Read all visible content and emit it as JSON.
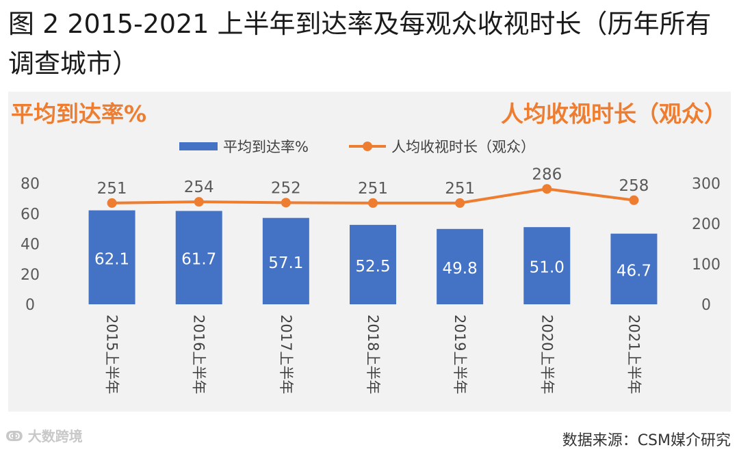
{
  "title": "图 2 2015-2021 上半年到达率及每观众收视时长（历年所有调查城市）",
  "footer": {
    "watermark": "大数跨境",
    "source": "数据来源：CSM媒介研究"
  },
  "chart_data": {
    "type": "bar+line",
    "left_axis_title": "平均到达率%",
    "right_axis_title": "人均收视时长（观众）",
    "categories": [
      "2015上半年",
      "2016上半年",
      "2017上半年",
      "2018上半年",
      "2019上半年",
      "2020上半年",
      "2021上半年"
    ],
    "series": [
      {
        "name": "平均到达率%",
        "type": "bar",
        "axis": "left",
        "color": "#4472c4",
        "values": [
          62.1,
          61.7,
          57.1,
          52.5,
          49.8,
          51.0,
          46.7
        ],
        "labels": [
          "62.1",
          "61.7",
          "57.1",
          "52.5",
          "49.8",
          "51.0",
          "46.7"
        ]
      },
      {
        "name": "人均收视时长（观众）",
        "type": "line",
        "axis": "right",
        "color": "#ed7d31",
        "values": [
          251,
          254,
          252,
          251,
          251,
          286,
          258
        ],
        "labels": [
          "251",
          "254",
          "252",
          "251",
          "251",
          "286",
          "258"
        ]
      }
    ],
    "left_axis": {
      "min": 0,
      "max": 80,
      "ticks": [
        "0",
        "20",
        "40",
        "60",
        "80"
      ]
    },
    "right_axis": {
      "min": 0,
      "max": 300,
      "ticks": [
        "0",
        "100",
        "200",
        "300"
      ]
    },
    "legend_position": "top-center",
    "grid": false
  }
}
